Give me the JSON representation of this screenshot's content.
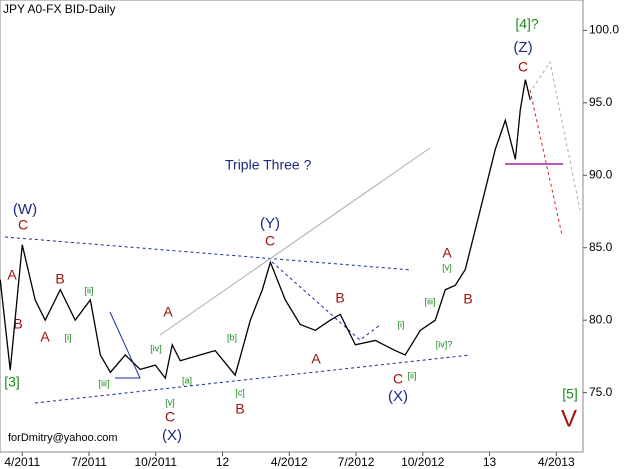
{
  "chart_data": {
    "type": "line",
    "title": "JPY A0-FX BID-Daily",
    "subtitle": "Triple Three ?",
    "footer": "forDmitry@yahoo.com",
    "series": [
      {
        "name": "JPY",
        "color": "#000000",
        "x": [
          -0.99,
          -0.54,
          0,
          0.58,
          1.03,
          1.71,
          2.38,
          3.06,
          3.51,
          3.96,
          4.63,
          5.3,
          5.98,
          6.43,
          6.74,
          7.1,
          8.0,
          8.67,
          9.57,
          10.25,
          10.79,
          11.15,
          11.82,
          12.49,
          13.17,
          13.84,
          14.29,
          14.97,
          15.87,
          16.76,
          17.21,
          17.89,
          18.56,
          19.01,
          19.46,
          19.91,
          20.58,
          21.26,
          21.71,
          22.16,
          22.38,
          22.61,
          22.83
        ],
        "values": [
          82.8,
          76.55,
          85.2,
          81.4,
          80.0,
          82.1,
          80.0,
          81.4,
          77.6,
          76.4,
          77.6,
          76.6,
          76.9,
          76.0,
          78.3,
          77.2,
          77.6,
          77.9,
          76.2,
          80.0,
          82.1,
          84.0,
          81.4,
          79.7,
          79.3,
          80.0,
          80.4,
          78.3,
          78.6,
          77.9,
          77.6,
          79.3,
          80.0,
          82.1,
          82.4,
          83.5,
          87.6,
          91.8,
          93.8,
          91.1,
          94.5,
          96.6,
          95.2
        ]
      }
    ],
    "xlim": [
      -1,
      25.2
    ],
    "ylim": [
      70.9,
      102.1
    ],
    "xticks": [
      {
        "value": 0,
        "label": "4/2011"
      },
      {
        "value": 3,
        "label": "7/2011"
      },
      {
        "value": 6,
        "label": "10/2011"
      },
      {
        "value": 9,
        "label": "12"
      },
      {
        "value": 12,
        "label": "4/2012"
      },
      {
        "value": 15,
        "label": "7/2012"
      },
      {
        "value": 18,
        "label": "10/2012"
      },
      {
        "value": 21,
        "label": "13"
      },
      {
        "value": 24,
        "label": "4/2013"
      }
    ],
    "yticks": [
      {
        "value": 75,
        "label": "75.0"
      },
      {
        "value": 80,
        "label": "80.0"
      },
      {
        "value": 85,
        "label": "85.0"
      },
      {
        "value": 90,
        "label": "90.0"
      },
      {
        "value": 95,
        "label": "95.0"
      },
      {
        "value": 100,
        "label": "100.0"
      }
    ],
    "annotations": [
      "(W)",
      "C",
      "A",
      "B",
      "[ii]",
      "B",
      "A",
      "[i]",
      "[3]",
      "[iii]",
      "[iv]",
      "A",
      "[a]",
      "[v]",
      "C",
      "(X)",
      "[b]",
      "[c]",
      "B",
      "(Y)",
      "C",
      "B",
      "A",
      "[i]",
      "[ii]",
      "C",
      "(X)",
      "[iii]",
      "[iv]?",
      "A",
      "[v]",
      "B",
      "[4]?",
      "(Z)",
      "C",
      "[5]",
      "V"
    ]
  }
}
